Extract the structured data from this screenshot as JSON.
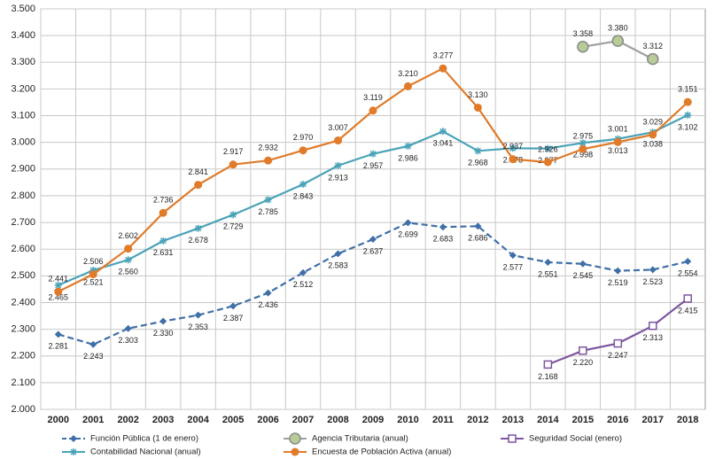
{
  "chart_data": {
    "type": "line",
    "categories": [
      "2000",
      "2001",
      "2002",
      "2003",
      "2004",
      "2005",
      "2006",
      "2007",
      "2008",
      "2009",
      "2010",
      "2011",
      "2012",
      "2013",
      "2014",
      "2015",
      "2016",
      "2017",
      "2018"
    ],
    "ylim": [
      2000,
      3500
    ],
    "yticks": [
      {
        "value": 2000,
        "label": "2.000"
      },
      {
        "value": 2100,
        "label": "2.100"
      },
      {
        "value": 2200,
        "label": "2.200"
      },
      {
        "value": 2300,
        "label": "2.300"
      },
      {
        "value": 2400,
        "label": "2.400"
      },
      {
        "value": 2500,
        "label": "2.500"
      },
      {
        "value": 2600,
        "label": "2.600"
      },
      {
        "value": 2700,
        "label": "2.700"
      },
      {
        "value": 2800,
        "label": "2.800"
      },
      {
        "value": 2900,
        "label": "2.900"
      },
      {
        "value": 3000,
        "label": "3.000"
      },
      {
        "value": 3100,
        "label": "3.100"
      },
      {
        "value": 3200,
        "label": "3.200"
      },
      {
        "value": 3300,
        "label": "3.300"
      },
      {
        "value": 3400,
        "label": "3.400"
      },
      {
        "value": 3500,
        "label": "3.500"
      }
    ],
    "grid": true,
    "series": [
      {
        "name": "Función Pública (1 de enero)",
        "color": "#3f6fa8",
        "dashed": true,
        "marker": "diamond",
        "values": [
          2281,
          2243,
          2303,
          2330,
          2353,
          2387,
          2436,
          2512,
          2583,
          2637,
          2699,
          2683,
          2686,
          2577,
          2551,
          2545,
          2519,
          2523,
          2554
        ],
        "value_labels": [
          "2.281",
          "2.243",
          "2.303",
          "2.330",
          "2.353",
          "2.387",
          "2.436",
          "2.512",
          "2.583",
          "2.637",
          "2.699",
          "2.683",
          "2.686",
          "2.577",
          "2.551",
          "2.545",
          "2.519",
          "2.523",
          "2.554"
        ]
      },
      {
        "name": "Agencia Tributaria (anual)",
        "color": "#a0a0a0",
        "dashed": false,
        "marker": "circle-light",
        "values": [
          null,
          null,
          null,
          null,
          null,
          null,
          null,
          null,
          null,
          null,
          null,
          null,
          null,
          null,
          null,
          3358,
          3380,
          3312,
          null
        ],
        "value_labels": [
          null,
          null,
          null,
          null,
          null,
          null,
          null,
          null,
          null,
          null,
          null,
          null,
          null,
          null,
          null,
          "3.358",
          "3.380",
          "3.312",
          null
        ]
      },
      {
        "name": "Seguridad Social (enero)",
        "color": "#7d55a0",
        "dashed": false,
        "marker": "square",
        "values": [
          null,
          null,
          null,
          null,
          null,
          null,
          null,
          null,
          null,
          null,
          null,
          null,
          null,
          null,
          2168,
          2220,
          2247,
          2313,
          2415
        ],
        "value_labels": [
          null,
          null,
          null,
          null,
          null,
          null,
          null,
          null,
          null,
          null,
          null,
          null,
          null,
          null,
          "2.168",
          "2.220",
          "2.247",
          "2.313",
          "2.415"
        ]
      },
      {
        "name": "Contabilidad Nacional (anual)",
        "color": "#4aa3b8",
        "dashed": false,
        "marker": "star",
        "values": [
          2465,
          2521,
          2560,
          2631,
          2678,
          2729,
          2785,
          2843,
          2913,
          2957,
          2986,
          3041,
          2968,
          2978,
          2977,
          2998,
          3013,
          3038,
          3102
        ],
        "value_labels": [
          "2.465",
          "2.521",
          "2.560",
          "2.631",
          "2.678",
          "2.729",
          "2.785",
          "2.843",
          "2.913",
          "2.957",
          "2.986",
          "3.041",
          "2.968",
          "2.978",
          "2.977",
          "2.998",
          "3.013",
          "3.038",
          "3.102"
        ]
      },
      {
        "name": "Encuesta de Población Activa (anual)",
        "color": "#e07b2a",
        "dashed": false,
        "marker": "circle",
        "values": [
          2441,
          2506,
          2602,
          2736,
          2841,
          2917,
          2932,
          2970,
          3007,
          3119,
          3210,
          3277,
          3130,
          2937,
          2926,
          2975,
          3001,
          3029,
          3151
        ],
        "value_labels": [
          "2.441",
          "2.506",
          "2.602",
          "2.736",
          "2.841",
          "2.917",
          "2.932",
          "2.970",
          "3.007",
          "3.119",
          "3.210",
          "3.277",
          "3.130",
          "2.937",
          "2.926",
          "2.975",
          "3.001",
          "3.029",
          "3.151"
        ]
      }
    ]
  }
}
